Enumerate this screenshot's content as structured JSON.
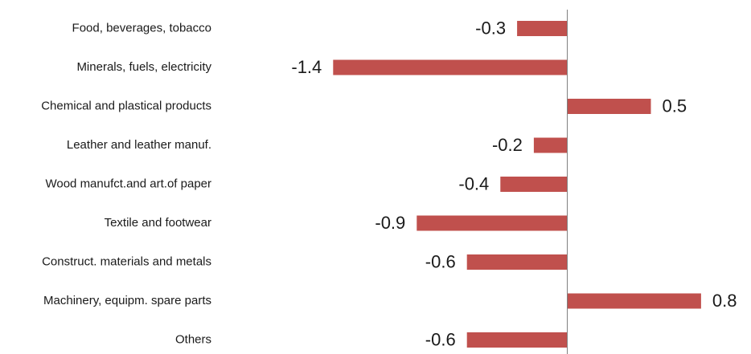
{
  "chart_data": {
    "type": "bar",
    "orientation": "horizontal",
    "categories": [
      "Food, beverages, tobacco",
      "Minerals, fuels, electricity",
      "Chemical and plastical products",
      "Leather and leather manuf.",
      "Wood manufct.and art.of paper",
      "Textile and footwear",
      "Construct. materials and metals",
      "Machinery, equipm. spare parts",
      "Others"
    ],
    "values": [
      -0.3,
      -1.4,
      0.5,
      -0.2,
      -0.4,
      -0.9,
      -0.6,
      0.8,
      -0.6
    ],
    "data_labels": [
      "-0.3",
      "-1.4",
      "0.5",
      "-0.2",
      "-0.4",
      "-0.9",
      "-0.6",
      "0.8",
      "-0.6"
    ],
    "title": "",
    "xlabel": "",
    "ylabel": "",
    "xlim": [
      -1.4,
      0.8
    ],
    "grid": false,
    "legend": "none",
    "bar_color": "#c0504d",
    "axis_color": "#808080"
  }
}
